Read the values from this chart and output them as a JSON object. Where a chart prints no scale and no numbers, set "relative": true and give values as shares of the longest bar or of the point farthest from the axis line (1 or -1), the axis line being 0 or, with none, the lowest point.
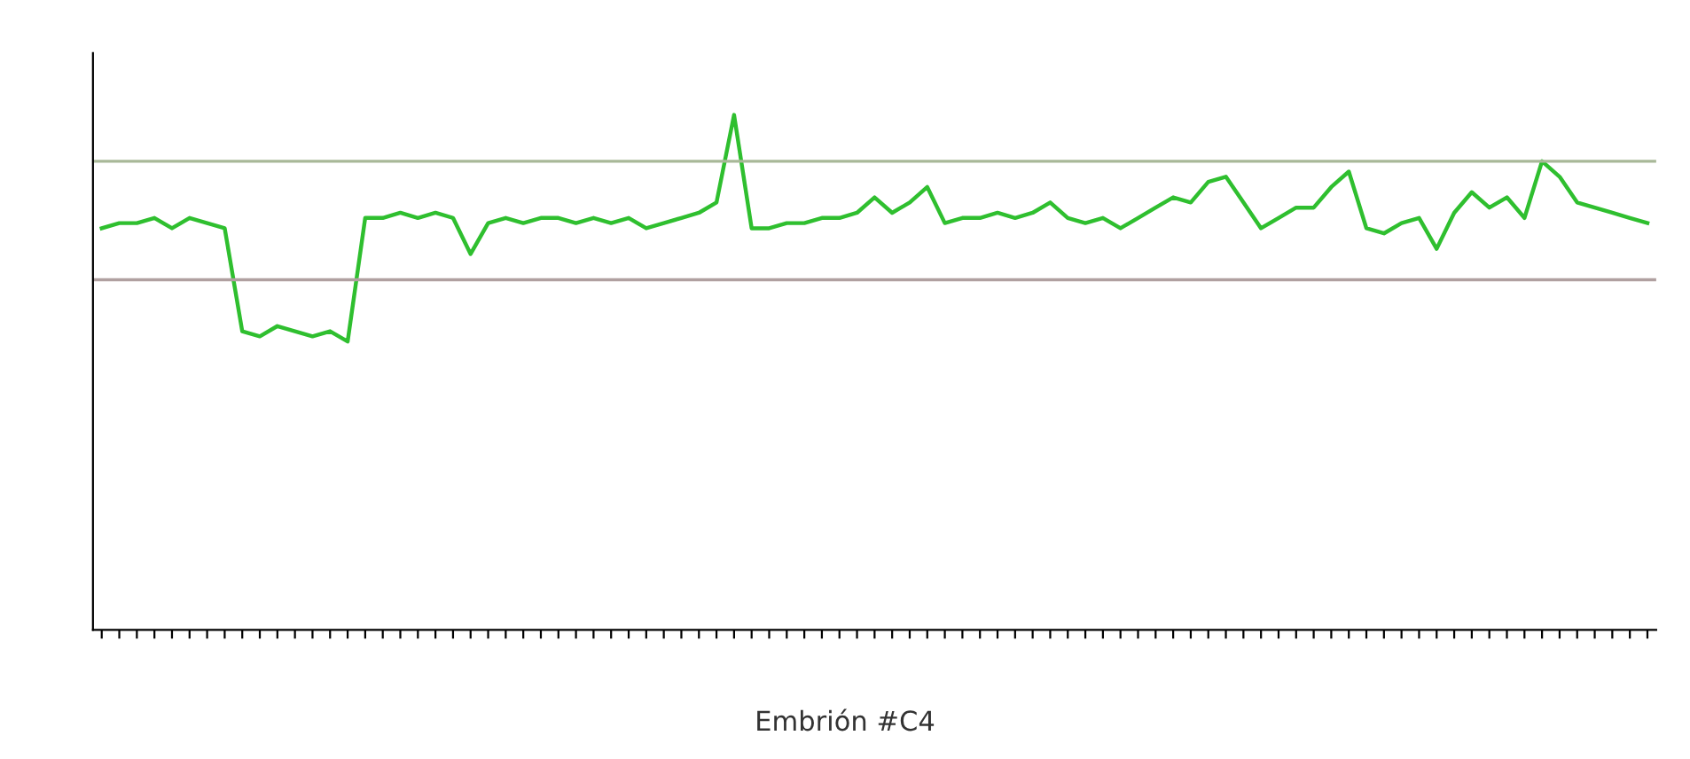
{
  "chart_data": {
    "type": "line",
    "title": "Embrión #C4",
    "relative": true,
    "categories": [
      null,
      null,
      null,
      null,
      null,
      null,
      null,
      null,
      null,
      null,
      null,
      null,
      null,
      null,
      null,
      null,
      null,
      null,
      null,
      null,
      null,
      null,
      null,
      null,
      null,
      null,
      null,
      null,
      null,
      null,
      null,
      null,
      null,
      null,
      null,
      null,
      null,
      null,
      null,
      null,
      null,
      null,
      null,
      null,
      null,
      null,
      null,
      null,
      null,
      null,
      null,
      null,
      null,
      null,
      null,
      null,
      null,
      null,
      null,
      null,
      null,
      null,
      null,
      null,
      null,
      null,
      null,
      null,
      null,
      null,
      null,
      null,
      null,
      null,
      null,
      null,
      null,
      null,
      null,
      null,
      null,
      null,
      null,
      null,
      null,
      null,
      null,
      null,
      null
    ],
    "series": [
      {
        "color": "#2fbf2f",
        "values": [
          0.78,
          0.79,
          0.79,
          0.8,
          0.78,
          0.8,
          0.79,
          0.78,
          0.58,
          0.57,
          0.59,
          0.58,
          0.57,
          0.58,
          0.56,
          0.8,
          0.8,
          0.81,
          0.8,
          0.81,
          0.8,
          0.73,
          0.79,
          0.8,
          0.79,
          0.8,
          0.8,
          0.79,
          0.8,
          0.79,
          0.8,
          0.78,
          0.79,
          0.8,
          0.81,
          0.83,
          1.0,
          0.78,
          0.78,
          0.79,
          0.79,
          0.8,
          0.8,
          0.81,
          0.84,
          0.81,
          0.83,
          0.86,
          0.79,
          0.8,
          0.8,
          0.81,
          0.8,
          0.81,
          0.83,
          0.8,
          0.79,
          0.8,
          0.78,
          0.8,
          0.82,
          0.84,
          0.83,
          0.87,
          0.88,
          0.83,
          0.78,
          0.8,
          0.82,
          0.82,
          0.86,
          0.89,
          0.78,
          0.77,
          0.79,
          0.8,
          0.74,
          0.81,
          0.85,
          0.82,
          0.84,
          0.8,
          0.91,
          0.88,
          0.83,
          0.82,
          0.81,
          0.8,
          0.79
        ]
      }
    ],
    "ref_lines": [
      {
        "axis": "y",
        "value": 0.91,
        "color": "#a8b898"
      },
      {
        "axis": "y",
        "value": 0.68,
        "color": "#b0a0a0"
      }
    ]
  }
}
